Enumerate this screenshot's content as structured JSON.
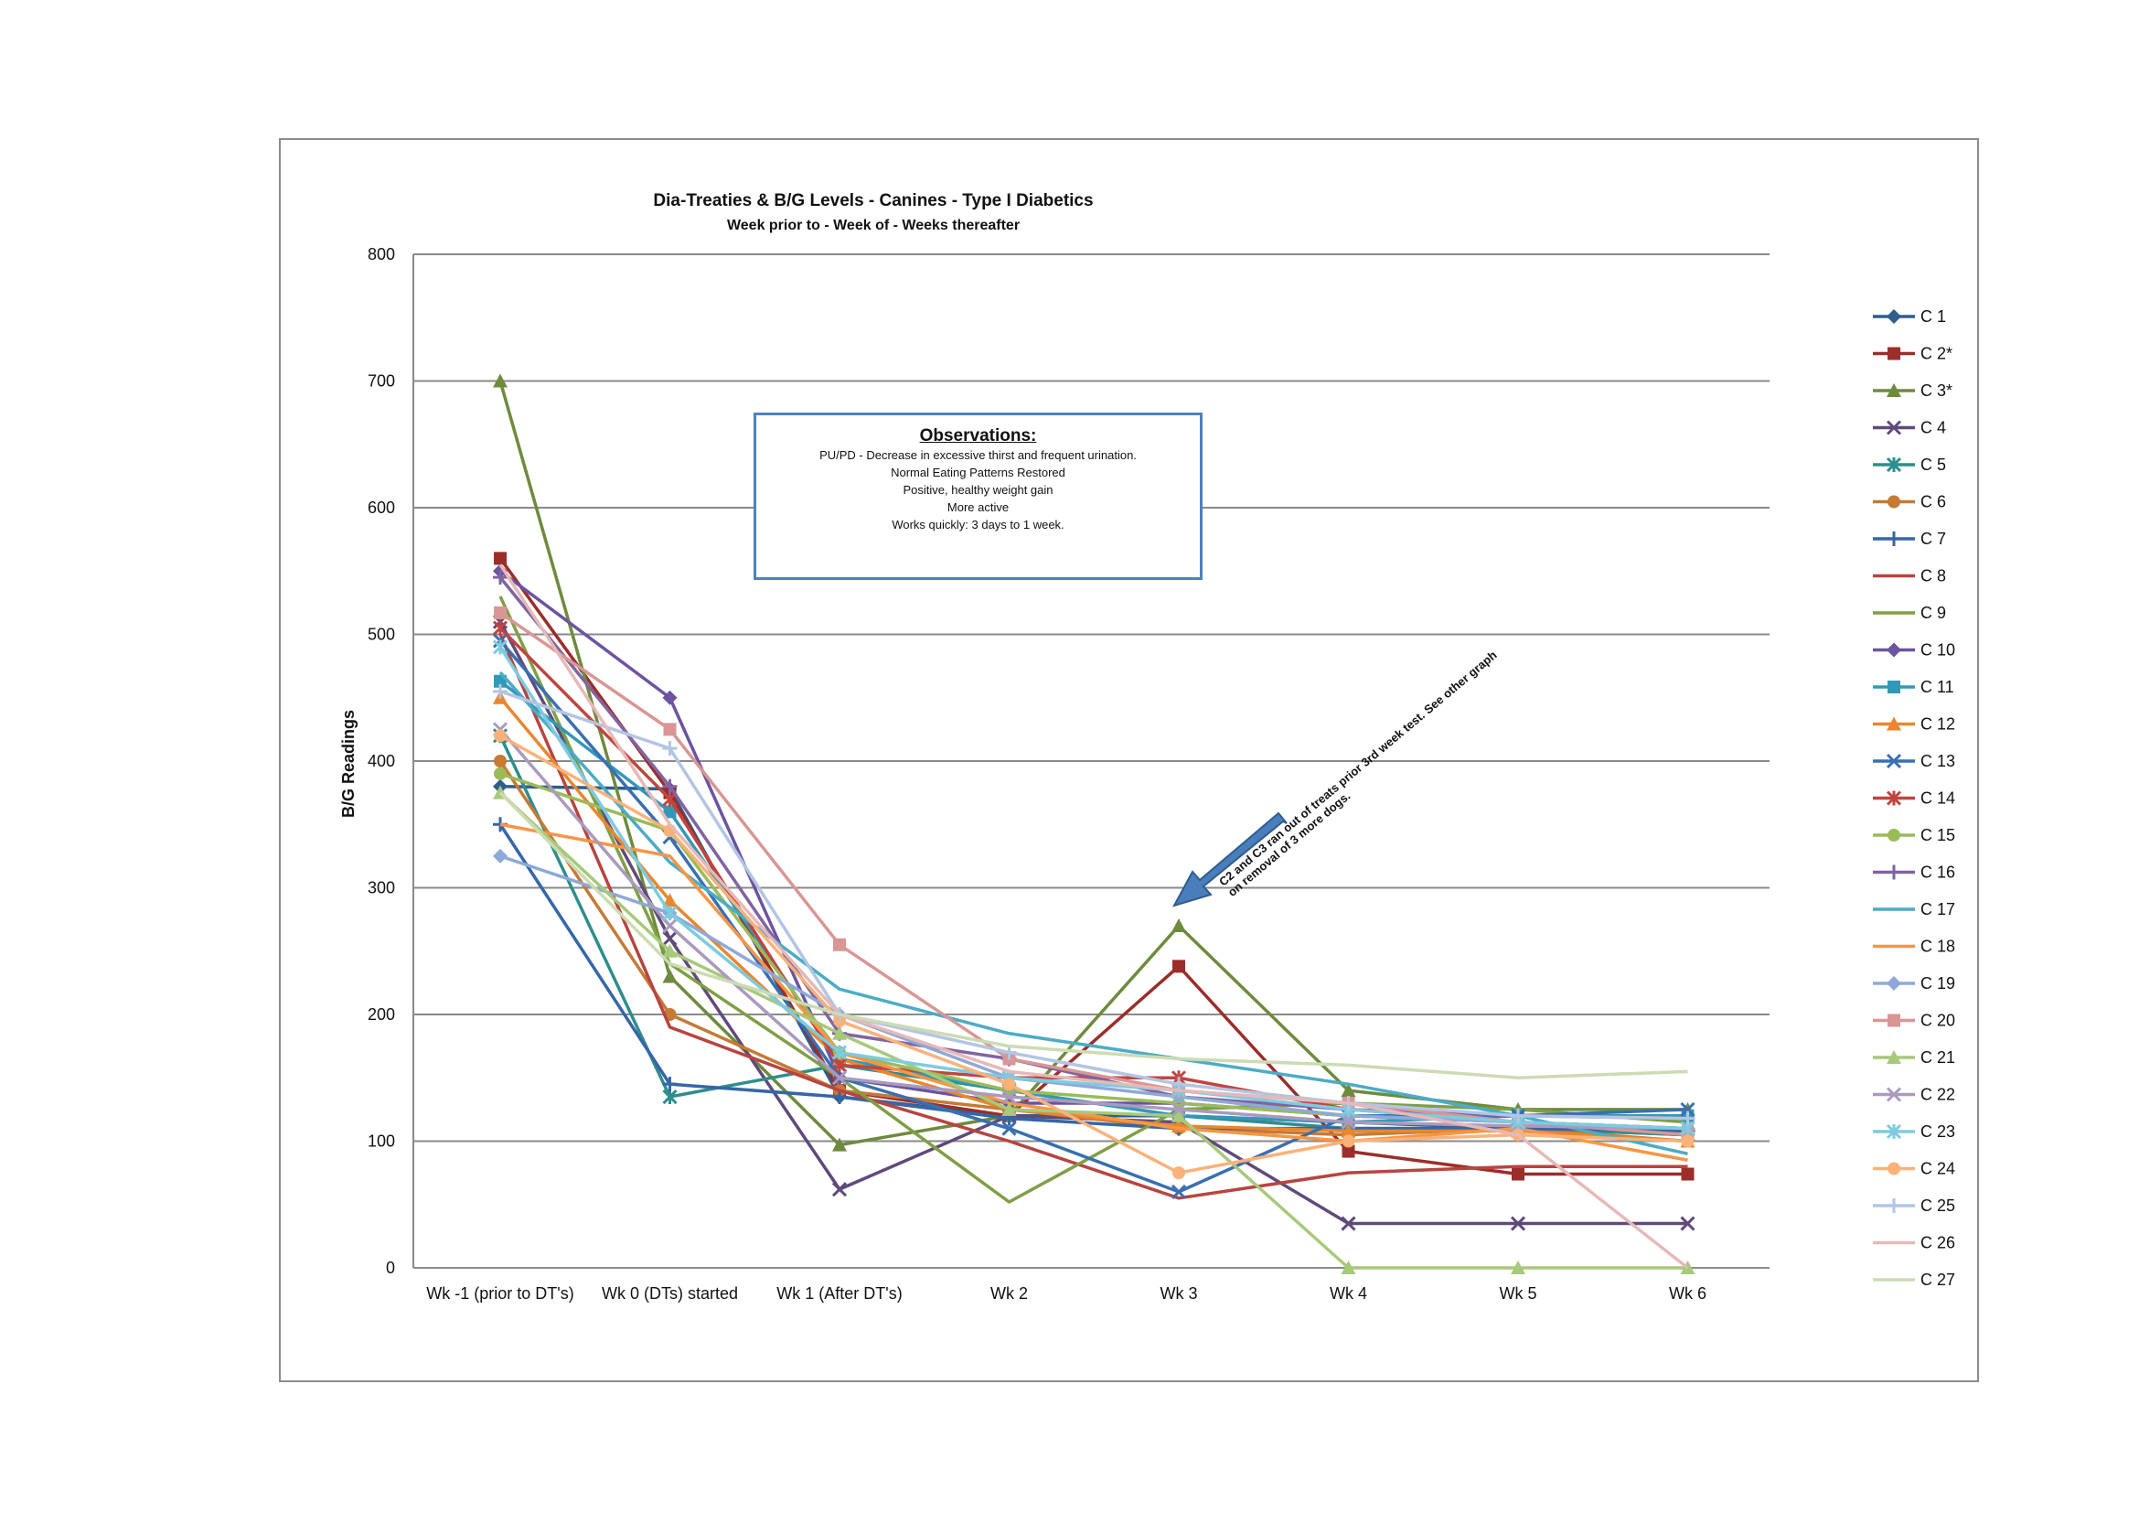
{
  "chart_data": {
    "type": "line",
    "title": "Dia-Treaties & B/G Levels - Canines - Type I Diabetics",
    "subtitle": "Week prior to - Week of - Weeks thereafter",
    "xlabel": "",
    "ylabel": "B/G Readings",
    "ylim": [
      0,
      800
    ],
    "yticks": [
      0,
      100,
      200,
      300,
      400,
      500,
      600,
      700,
      800
    ],
    "grid": true,
    "legend_position": "right",
    "categories": [
      "Wk -1 (prior to DT's)",
      "Wk 0 (DTs) started",
      "Wk 1 (After DT's)",
      "Wk 2",
      "Wk 3",
      "Wk 4",
      "Wk 5",
      "Wk 6"
    ],
    "series": [
      {
        "name": "C 1",
        "color": "#2e5d8e",
        "marker": "diamond",
        "values": [
          380,
          378,
          135,
          120,
          120,
          115,
          110,
          105
        ]
      },
      {
        "name": "C 2*",
        "color": "#9b2d2a",
        "marker": "square",
        "values": [
          560,
          375,
          140,
          120,
          238,
          92,
          74,
          74
        ]
      },
      {
        "name": "C 3*",
        "color": "#6e8b3d",
        "marker": "triangle",
        "values": [
          700,
          230,
          97,
          120,
          270,
          140,
          125,
          125
        ]
      },
      {
        "name": "C 4",
        "color": "#5f4a7b",
        "marker": "x",
        "values": [
          510,
          260,
          62,
          120,
          115,
          35,
          35,
          35
        ]
      },
      {
        "name": "C 5",
        "color": "#2f8d8d",
        "marker": "star",
        "values": [
          420,
          135,
          160,
          140,
          120,
          110,
          110,
          105
        ]
      },
      {
        "name": "C 6",
        "color": "#c67a35",
        "marker": "circle",
        "values": [
          400,
          200,
          140,
          125,
          110,
          105,
          110,
          100
        ]
      },
      {
        "name": "C 7",
        "color": "#3566a8",
        "marker": "plus",
        "values": [
          350,
          145,
          135,
          118,
          110,
          110,
          110,
          108
        ]
      },
      {
        "name": "C 8",
        "color": "#b84440",
        "marker": "none",
        "values": [
          500,
          190,
          140,
          100,
          55,
          75,
          80,
          80
        ]
      },
      {
        "name": "C 9",
        "color": "#7f9f45",
        "marker": "none",
        "values": [
          530,
          240,
          150,
          52,
          125,
          130,
          125,
          115
        ]
      },
      {
        "name": "C 10",
        "color": "#6b54a0",
        "marker": "diamond",
        "values": [
          550,
          450,
          150,
          130,
          130,
          120,
          115,
          110
        ]
      },
      {
        "name": "C 11",
        "color": "#3398b8",
        "marker": "square",
        "values": [
          463,
          360,
          165,
          140,
          120,
          115,
          120,
          120
        ]
      },
      {
        "name": "C 12",
        "color": "#e8872e",
        "marker": "triangle",
        "values": [
          450,
          290,
          165,
          125,
          112,
          108,
          108,
          100
        ]
      },
      {
        "name": "C 13",
        "color": "#3a6fb0",
        "marker": "x",
        "values": [
          495,
          340,
          150,
          110,
          60,
          120,
          120,
          125
        ]
      },
      {
        "name": "C 14",
        "color": "#c0453f",
        "marker": "star",
        "values": [
          505,
          370,
          160,
          150,
          150,
          125,
          115,
          110
        ]
      },
      {
        "name": "C 15",
        "color": "#9bbb59",
        "marker": "circle",
        "values": [
          390,
          345,
          170,
          140,
          130,
          120,
          115,
          110
        ]
      },
      {
        "name": "C 16",
        "color": "#8064a2",
        "marker": "plus",
        "values": [
          545,
          380,
          185,
          165,
          135,
          125,
          120,
          118
        ]
      },
      {
        "name": "C 17",
        "color": "#4bacc6",
        "marker": "none",
        "values": [
          470,
          320,
          220,
          185,
          165,
          145,
          120,
          90
        ]
      },
      {
        "name": "C 18",
        "color": "#f79646",
        "marker": "none",
        "values": [
          350,
          325,
          170,
          130,
          110,
          100,
          110,
          85
        ]
      },
      {
        "name": "C 19",
        "color": "#8ea9d8",
        "marker": "diamond",
        "values": [
          325,
          280,
          200,
          150,
          135,
          120,
          115,
          110
        ]
      },
      {
        "name": "C 20",
        "color": "#d99694",
        "marker": "square",
        "values": [
          517,
          425,
          255,
          165,
          140,
          130,
          115,
          105
        ]
      },
      {
        "name": "C 21",
        "color": "#a7c97a",
        "marker": "triangle",
        "values": [
          375,
          250,
          185,
          125,
          120,
          0,
          0,
          0
        ]
      },
      {
        "name": "C 22",
        "color": "#a99bbd",
        "marker": "x",
        "values": [
          425,
          270,
          150,
          135,
          125,
          115,
          112,
          110
        ]
      },
      {
        "name": "C 23",
        "color": "#7ecbe0",
        "marker": "star",
        "values": [
          490,
          280,
          170,
          150,
          140,
          125,
          115,
          110
        ]
      },
      {
        "name": "C 24",
        "color": "#fab27a",
        "marker": "circle",
        "values": [
          420,
          345,
          195,
          145,
          75,
          100,
          105,
          100
        ]
      },
      {
        "name": "C 25",
        "color": "#b3c5e3",
        "marker": "plus",
        "values": [
          455,
          410,
          200,
          170,
          145,
          130,
          120,
          118
        ]
      },
      {
        "name": "C 26",
        "color": "#e6b9b8",
        "marker": "none",
        "values": [
          555,
          350,
          200,
          155,
          140,
          130,
          105,
          0
        ]
      },
      {
        "name": "C 27",
        "color": "#cddbb3",
        "marker": "none",
        "values": [
          375,
          240,
          200,
          175,
          165,
          160,
          150,
          155
        ]
      }
    ]
  },
  "observations": {
    "title": "Observations:",
    "lines": [
      "PU/PD  - Decrease in excessive thirst and frequent urination.",
      "Normal Eating Patterns Restored",
      "Positive, healthy weight gain",
      "More active",
      "Works quickly: 3 days to 1 week."
    ]
  },
  "annotation": {
    "line1": "C2 and C3  ran out of treats prior 3rd week test.  See other graph",
    "line2": "on removal of 3 more dogs.",
    "arrow_color": "#4a7ebb"
  }
}
